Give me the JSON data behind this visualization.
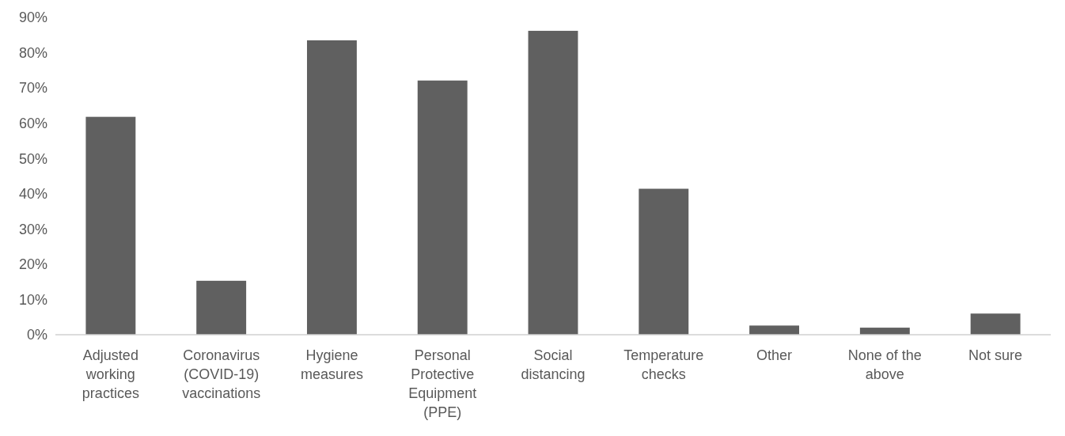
{
  "chart_data": {
    "type": "bar",
    "categories": [
      "Adjusted working practices",
      "Coronavirus (COVID-19) vaccinations",
      "Hygiene measures",
      "Personal Protective Equipment (PPE)",
      "Social distancing",
      "Temperature checks",
      "Other",
      "None of the above",
      "Not sure"
    ],
    "values": [
      61.8,
      15.3,
      83.5,
      72.1,
      86.2,
      41.4,
      2.6,
      2.0,
      6.0
    ],
    "color": "#606060",
    "ylim": [
      0,
      90
    ],
    "yticks": [
      {
        "value": 0,
        "label": "0%"
      },
      {
        "value": 10,
        "label": "10%"
      },
      {
        "value": 20,
        "label": "20%"
      },
      {
        "value": 30,
        "label": "30%"
      },
      {
        "value": 40,
        "label": "40%"
      },
      {
        "value": 50,
        "label": "50%"
      },
      {
        "value": 60,
        "label": "60%"
      },
      {
        "value": 70,
        "label": "70%"
      },
      {
        "value": 80,
        "label": "80%"
      },
      {
        "value": 90,
        "label": "90%"
      }
    ],
    "grid": false
  }
}
